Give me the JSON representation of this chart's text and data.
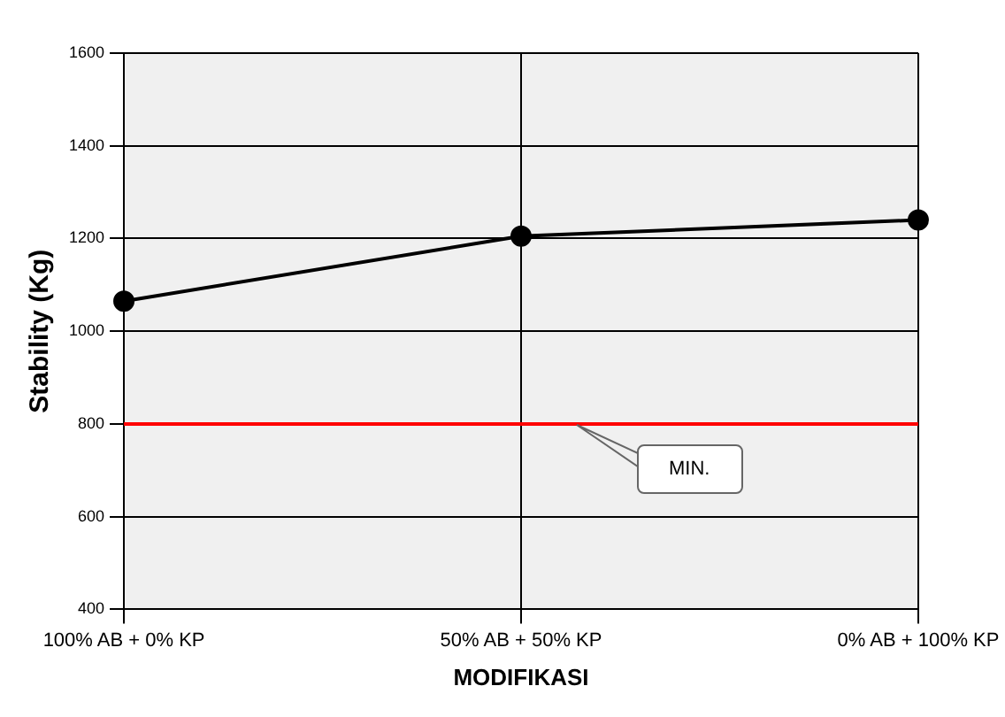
{
  "chart_data": {
    "type": "line",
    "xlabel": "MODIFIKASI",
    "ylabel": "Stability (Kg)",
    "categories": [
      "100% AB + 0% KP",
      "50% AB + 50% KP",
      "0% AB + 100% KP"
    ],
    "series": [
      {
        "color": "#000000",
        "values": [
          1065,
          1205,
          1240
        ]
      }
    ],
    "ylim": [
      400,
      1600
    ],
    "yticks": [
      400,
      600,
      800,
      1000,
      1200,
      1400,
      1600
    ],
    "ref_lines": [
      {
        "axis": "y",
        "value": 800,
        "label": "MIN.",
        "color": "#ff0000"
      }
    ],
    "grid": true,
    "legend": false,
    "marker": "circle",
    "line_style": "solid"
  }
}
